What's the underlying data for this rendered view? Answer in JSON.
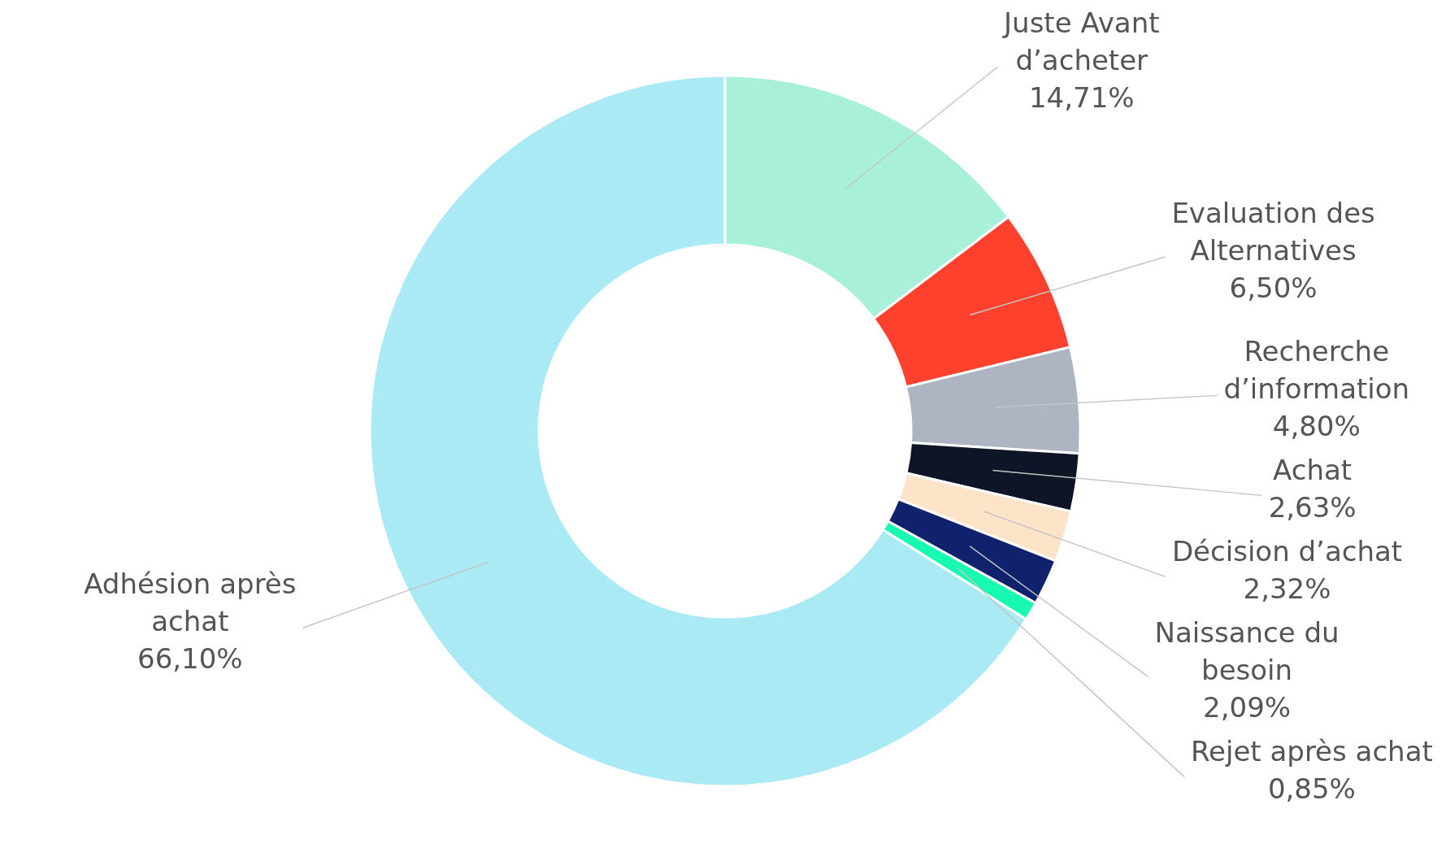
{
  "chart_data": {
    "type": "donut",
    "categories": [
      "Juste Avant d’acheter",
      "Evaluation des Alternatives",
      "Recherche d’information",
      "Achat",
      "Décision d’achat",
      "Naissance du besoin",
      "Rejet après achat",
      "Adhésion après achat"
    ],
    "values": [
      14.71,
      6.5,
      4.8,
      2.63,
      2.32,
      2.09,
      0.85,
      66.1
    ],
    "value_labels": [
      "14,71%",
      "6,50%",
      "4,80%",
      "2,63%",
      "2,32%",
      "2,09%",
      "0,85%",
      "66,10%"
    ],
    "colors": [
      "#a9f0da",
      "#ff412e",
      "#adb5c3",
      "#0d1527",
      "#fde4c9",
      "#0f226b",
      "#17fbb0",
      "#aaeaf5"
    ]
  }
}
